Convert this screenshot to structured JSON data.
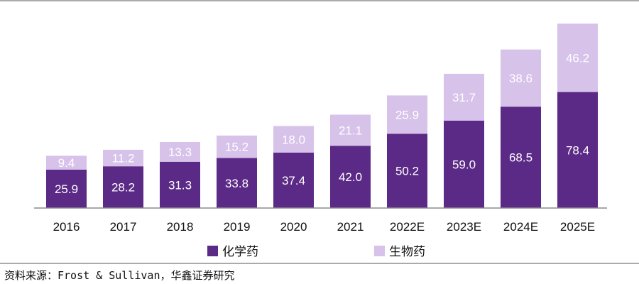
{
  "chart_data": {
    "type": "bar",
    "stacked": true,
    "categories": [
      "2016",
      "2017",
      "2018",
      "2019",
      "2020",
      "2021",
      "2022E",
      "2023E",
      "2024E",
      "2025E"
    ],
    "series": [
      {
        "name": "化学药",
        "color": "#5b2a86",
        "values": [
          25.9,
          28.2,
          31.3,
          33.8,
          37.4,
          42.0,
          50.2,
          59.0,
          68.5,
          78.4
        ]
      },
      {
        "name": "生物药",
        "color": "#d7c2ea",
        "values": [
          9.4,
          11.2,
          13.3,
          15.2,
          18.0,
          21.1,
          25.9,
          31.7,
          38.6,
          46.2
        ]
      }
    ],
    "legend_position": "bottom",
    "grid": false,
    "ylim": [
      0,
      130
    ]
  },
  "source_text": "资料来源：Frost & Sullivan，华鑫证券研究"
}
